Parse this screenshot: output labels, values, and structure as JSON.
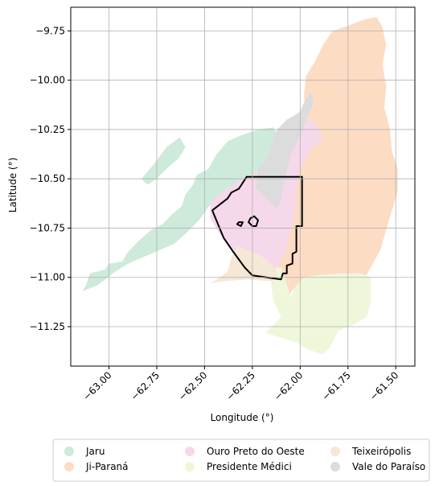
{
  "chart_data": {
    "type": "map",
    "xlabel": "Longitude (°)",
    "ylabel": "Latitude (°)",
    "xlim": [
      -63.2,
      -61.4
    ],
    "ylim": [
      -11.45,
      -9.63
    ],
    "grid": true,
    "x_ticks": [
      {
        "value": -63.0,
        "label": "−63.00"
      },
      {
        "value": -62.75,
        "label": "−62.75"
      },
      {
        "value": -62.5,
        "label": "−62.50"
      },
      {
        "value": -62.25,
        "label": "−62.25"
      },
      {
        "value": -62.0,
        "label": "−62.00"
      },
      {
        "value": -61.75,
        "label": "−61.75"
      },
      {
        "value": -61.5,
        "label": "−61.50"
      }
    ],
    "y_ticks": [
      {
        "value": -9.75,
        "label": "−9.75"
      },
      {
        "value": -10.0,
        "label": "−10.00"
      },
      {
        "value": -10.25,
        "label": "−10.25"
      },
      {
        "value": -10.5,
        "label": "−10.50"
      },
      {
        "value": -10.75,
        "label": "−10.75"
      },
      {
        "value": -11.0,
        "label": "−11.00"
      },
      {
        "value": -11.25,
        "label": "−11.25"
      }
    ],
    "legend": {
      "placement": "bottom-center",
      "columns": 3,
      "entries": [
        {
          "name": "Jaru",
          "color": "#cdeadb"
        },
        {
          "name": "Ji-Paraná",
          "color": "#fddcc4"
        },
        {
          "name": "Ouro Preto do Oeste",
          "color": "#f5d8ea"
        },
        {
          "name": "Presidente Médici",
          "color": "#eef7da"
        },
        {
          "name": "Teixeirópolis",
          "color": "#f5e8d6"
        },
        {
          "name": "Vale do Paraíso",
          "color": "#dcdcdc"
        }
      ]
    },
    "regions": [
      {
        "name": "Jaru",
        "color": "#cdeadb",
        "polygons": [
          [
            [
              -63.14,
              -11.07
            ],
            [
              -63.12,
              -11.04
            ],
            [
              -63.1,
              -10.98
            ],
            [
              -63.02,
              -10.96
            ],
            [
              -63.0,
              -10.93
            ],
            [
              -62.93,
              -10.92
            ],
            [
              -62.9,
              -10.87
            ],
            [
              -62.85,
              -10.82
            ],
            [
              -62.78,
              -10.76
            ],
            [
              -62.72,
              -10.73
            ],
            [
              -62.67,
              -10.68
            ],
            [
              -62.62,
              -10.64
            ],
            [
              -62.6,
              -10.58
            ],
            [
              -62.56,
              -10.53
            ],
            [
              -62.54,
              -10.48
            ],
            [
              -62.48,
              -10.45
            ],
            [
              -62.44,
              -10.38
            ],
            [
              -62.38,
              -10.31
            ],
            [
              -62.31,
              -10.28
            ],
            [
              -62.22,
              -10.25
            ],
            [
              -62.14,
              -10.24
            ],
            [
              -62.1,
              -10.31
            ],
            [
              -62.14,
              -10.38
            ],
            [
              -62.19,
              -10.45
            ],
            [
              -62.25,
              -10.5
            ],
            [
              -62.36,
              -10.56
            ],
            [
              -62.47,
              -10.63
            ],
            [
              -62.53,
              -10.71
            ],
            [
              -62.6,
              -10.78
            ],
            [
              -62.66,
              -10.83
            ],
            [
              -62.78,
              -10.88
            ],
            [
              -62.9,
              -10.93
            ],
            [
              -62.98,
              -10.98
            ],
            [
              -63.06,
              -11.04
            ]
          ],
          [
            [
              -62.83,
              -10.5
            ],
            [
              -62.76,
              -10.42
            ],
            [
              -62.7,
              -10.34
            ],
            [
              -62.63,
              -10.29
            ],
            [
              -62.6,
              -10.34
            ],
            [
              -62.64,
              -10.4
            ],
            [
              -62.7,
              -10.45
            ],
            [
              -62.75,
              -10.5
            ],
            [
              -62.8,
              -10.53
            ]
          ]
        ]
      },
      {
        "name": "Ji-Paraná",
        "color": "#fddcc4",
        "polygons": [
          [
            [
              -61.97,
              -10.2
            ],
            [
              -61.98,
              -10.08
            ],
            [
              -61.97,
              -9.98
            ],
            [
              -61.92,
              -9.9
            ],
            [
              -61.88,
              -9.82
            ],
            [
              -61.83,
              -9.75
            ],
            [
              -61.74,
              -9.72
            ],
            [
              -61.66,
              -9.69
            ],
            [
              -61.6,
              -9.68
            ],
            [
              -61.57,
              -9.73
            ],
            [
              -61.55,
              -9.82
            ],
            [
              -61.57,
              -9.92
            ],
            [
              -61.55,
              -10.03
            ],
            [
              -61.56,
              -10.14
            ],
            [
              -61.53,
              -10.25
            ],
            [
              -61.52,
              -10.36
            ],
            [
              -61.49,
              -10.45
            ],
            [
              -61.49,
              -10.56
            ],
            [
              -61.52,
              -10.66
            ],
            [
              -61.55,
              -10.76
            ],
            [
              -61.58,
              -10.86
            ],
            [
              -61.62,
              -10.93
            ],
            [
              -61.66,
              -11.0
            ],
            [
              -61.74,
              -11.0
            ],
            [
              -61.82,
              -11.0
            ],
            [
              -61.92,
              -11.0
            ],
            [
              -62.0,
              -11.02
            ],
            [
              -62.05,
              -11.08
            ],
            [
              -62.06,
              -11.12
            ],
            [
              -62.12,
              -11.11
            ],
            [
              -62.15,
              -11.05
            ],
            [
              -62.15,
              -10.95
            ],
            [
              -62.1,
              -10.85
            ],
            [
              -62.06,
              -10.72
            ],
            [
              -62.05,
              -10.58
            ],
            [
              -62.04,
              -10.45
            ],
            [
              -62.02,
              -10.35
            ],
            [
              -62.0,
              -10.27
            ]
          ]
        ]
      },
      {
        "name": "Ouro Preto do Oeste",
        "color": "#f5d8ea",
        "polygons": [
          [
            [
              -62.47,
              -10.62
            ],
            [
              -62.4,
              -10.56
            ],
            [
              -62.3,
              -10.5
            ],
            [
              -62.2,
              -10.45
            ],
            [
              -62.13,
              -10.4
            ],
            [
              -62.08,
              -10.3
            ],
            [
              -62.02,
              -10.22
            ],
            [
              -61.98,
              -10.18
            ],
            [
              -61.92,
              -10.22
            ],
            [
              -61.88,
              -10.3
            ],
            [
              -61.95,
              -10.36
            ],
            [
              -62.0,
              -10.45
            ],
            [
              -62.02,
              -10.55
            ],
            [
              -62.03,
              -10.68
            ],
            [
              -62.06,
              -10.8
            ],
            [
              -62.08,
              -10.88
            ],
            [
              -62.12,
              -10.95
            ],
            [
              -62.22,
              -10.95
            ],
            [
              -62.3,
              -10.92
            ],
            [
              -62.35,
              -10.86
            ],
            [
              -62.42,
              -10.78
            ],
            [
              -62.47,
              -10.7
            ]
          ]
        ]
      },
      {
        "name": "Presidente Médici",
        "color": "#eef7da",
        "polygons": [
          [
            [
              -62.13,
              -10.95
            ],
            [
              -62.15,
              -11.05
            ],
            [
              -62.14,
              -11.12
            ],
            [
              -62.1,
              -11.2
            ],
            [
              -62.18,
              -11.28
            ],
            [
              -62.12,
              -11.3
            ],
            [
              -62.02,
              -11.33
            ],
            [
              -61.95,
              -11.37
            ],
            [
              -61.88,
              -11.39
            ],
            [
              -61.84,
              -11.35
            ],
            [
              -61.8,
              -11.27
            ],
            [
              -61.72,
              -11.24
            ],
            [
              -61.65,
              -11.2
            ],
            [
              -61.63,
              -11.12
            ],
            [
              -61.63,
              -11.0
            ],
            [
              -61.68,
              -10.98
            ],
            [
              -61.8,
              -10.98
            ],
            [
              -61.92,
              -10.99
            ],
            [
              -61.98,
              -11.0
            ],
            [
              -62.02,
              -11.04
            ],
            [
              -62.05,
              -11.1
            ],
            [
              -62.08,
              -11.0
            ],
            [
              -62.1,
              -10.95
            ]
          ]
        ]
      },
      {
        "name": "Teixeirópolis",
        "color": "#f5e8d6",
        "polygons": [
          [
            [
              -62.47,
              -11.03
            ],
            [
              -62.42,
              -11.0
            ],
            [
              -62.38,
              -10.97
            ],
            [
              -62.36,
              -10.9
            ],
            [
              -62.33,
              -10.84
            ],
            [
              -62.28,
              -10.86
            ],
            [
              -62.22,
              -10.88
            ],
            [
              -62.15,
              -10.93
            ],
            [
              -62.12,
              -10.98
            ],
            [
              -62.15,
              -11.02
            ],
            [
              -62.28,
              -11.01
            ],
            [
              -62.4,
              -11.02
            ]
          ]
        ]
      },
      {
        "name": "Vale do Paraíso",
        "color": "#dcdcdc",
        "polygons": [
          [
            [
              -62.12,
              -10.65
            ],
            [
              -62.18,
              -10.6
            ],
            [
              -62.23,
              -10.55
            ],
            [
              -62.22,
              -10.45
            ],
            [
              -62.17,
              -10.38
            ],
            [
              -62.14,
              -10.3
            ],
            [
              -62.12,
              -10.25
            ],
            [
              -62.07,
              -10.2
            ],
            [
              -62.0,
              -10.16
            ],
            [
              -61.97,
              -10.09
            ],
            [
              -61.94,
              -10.06
            ],
            [
              -61.93,
              -10.12
            ],
            [
              -61.97,
              -10.2
            ],
            [
              -62.0,
              -10.28
            ],
            [
              -62.05,
              -10.38
            ],
            [
              -62.08,
              -10.5
            ],
            [
              -62.1,
              -10.6
            ]
          ]
        ]
      }
    ],
    "outlines": [
      {
        "name": "boundary",
        "color": "#000000",
        "polygons": [
          [
            [
              -62.28,
              -10.49
            ],
            [
              -61.99,
              -10.49
            ],
            [
              -61.99,
              -10.74
            ],
            [
              -62.02,
              -10.74
            ],
            [
              -62.02,
              -10.87
            ],
            [
              -62.04,
              -10.88
            ],
            [
              -62.04,
              -10.93
            ],
            [
              -62.07,
              -10.94
            ],
            [
              -62.07,
              -10.98
            ],
            [
              -62.09,
              -10.98
            ],
            [
              -62.1,
              -11.01
            ],
            [
              -62.25,
              -10.99
            ],
            [
              -62.29,
              -10.95
            ],
            [
              -62.35,
              -10.87
            ],
            [
              -62.4,
              -10.8
            ],
            [
              -62.46,
              -10.66
            ],
            [
              -62.42,
              -10.63
            ],
            [
              -62.38,
              -10.6
            ],
            [
              -62.36,
              -10.57
            ],
            [
              -62.32,
              -10.55
            ],
            [
              -62.3,
              -10.52
            ]
          ],
          [
            [
              -62.26,
              -10.7
            ],
            [
              -62.24,
              -10.69
            ],
            [
              -62.22,
              -10.71
            ],
            [
              -62.23,
              -10.74
            ],
            [
              -62.25,
              -10.74
            ],
            [
              -62.27,
              -10.72
            ]
          ],
          [
            [
              -62.32,
              -10.72
            ],
            [
              -62.3,
              -10.72
            ],
            [
              -62.31,
              -10.74
            ],
            [
              -62.33,
              -10.73
            ]
          ]
        ]
      }
    ]
  }
}
